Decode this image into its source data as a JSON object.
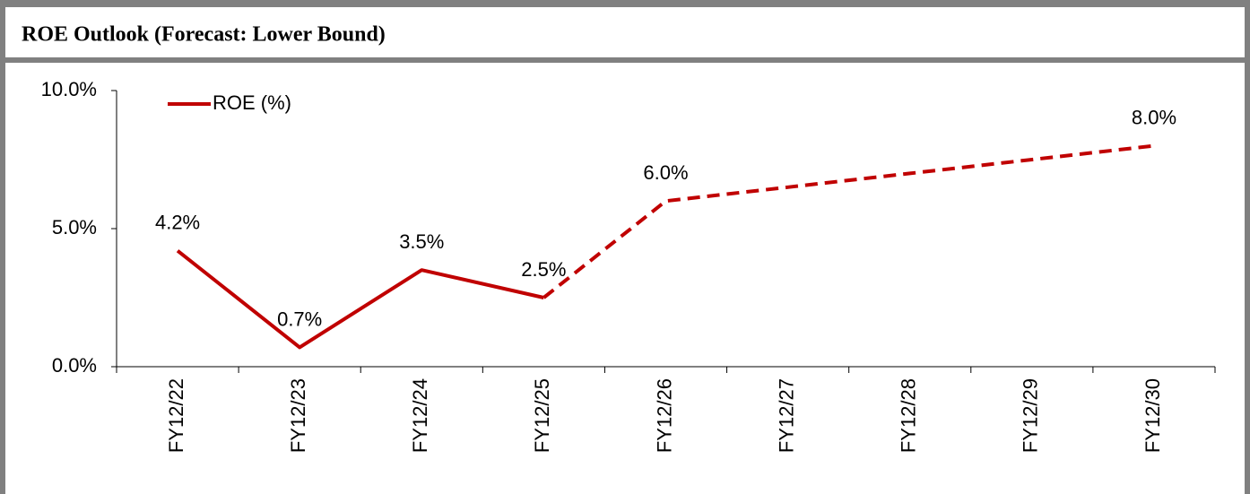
{
  "chart_data": {
    "type": "line",
    "title": "ROE Outlook (Forecast: Lower Bound)",
    "categories": [
      "FY12/22",
      "FY12/23",
      "FY12/24",
      "FY12/25",
      "FY12/26",
      "FY12/27",
      "FY12/28",
      "FY12/29",
      "FY12/30"
    ],
    "series": [
      {
        "name": "ROE (%)",
        "color": "#c00000",
        "values": [
          4.2,
          0.7,
          3.5,
          2.5,
          6.0,
          6.5,
          7.0,
          7.5,
          8.0
        ],
        "value_labels": [
          "4.2%",
          "0.7%",
          "3.5%",
          "2.5%",
          "6.0%",
          null,
          null,
          null,
          "8.0%"
        ]
      }
    ],
    "forecast_from": "FY12/25",
    "ylim": [
      0,
      10
    ],
    "yticks": [
      {
        "value": 0,
        "label": "0.0%"
      },
      {
        "value": 5,
        "label": "5.0%"
      },
      {
        "value": 10,
        "label": "10.0%"
      }
    ],
    "legend": "top-left"
  }
}
